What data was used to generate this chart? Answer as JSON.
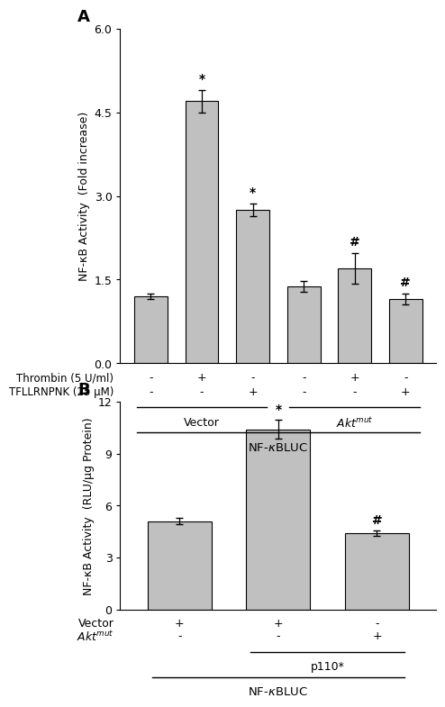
{
  "panel_A": {
    "bar_values": [
      1.2,
      4.7,
      2.75,
      1.38,
      1.7,
      1.15
    ],
    "bar_errors": [
      0.05,
      0.2,
      0.12,
      0.1,
      0.28,
      0.1
    ],
    "bar_color": "#c0c0c0",
    "ylim": [
      0.0,
      6.0
    ],
    "yticks": [
      0.0,
      1.5,
      3.0,
      4.5,
      6.0
    ],
    "ytick_labels": [
      "0.0",
      "1.5",
      "3.0",
      "4.5",
      "6.0"
    ],
    "ylabel": "NF-κB Activity  (Fold increase)",
    "panel_label": "A",
    "significance": [
      "",
      "*",
      "*",
      "",
      "#",
      "#"
    ],
    "thrombin_row": [
      "-",
      "+",
      "-",
      "-",
      "+",
      "-"
    ],
    "tfll_row": [
      "-",
      "-",
      "+",
      "-",
      "-",
      "+"
    ],
    "thrombin_label": "Thrombin (5 U/ml)",
    "tfll_label": "TFLLRNPNK (25 μM)"
  },
  "panel_B": {
    "bar_values": [
      5.1,
      10.4,
      4.4
    ],
    "bar_errors": [
      0.2,
      0.55,
      0.15
    ],
    "bar_color": "#c0c0c0",
    "ylim": [
      0.0,
      12.0
    ],
    "yticks": [
      0,
      3,
      6,
      9,
      12
    ],
    "ytick_labels": [
      "0",
      "3",
      "6",
      "9",
      "12"
    ],
    "ylabel": "NF-κB Activity  (RLU/μg Protein)",
    "panel_label": "B",
    "significance": [
      "",
      "*",
      "#"
    ],
    "vector_row": [
      "+",
      "+",
      "-"
    ],
    "akt_row": [
      "-",
      "-",
      "+"
    ],
    "vector_label": "Vector",
    "akt_label": "Akt$^{mut}$"
  },
  "bar_width": 0.65,
  "figure_bg": "#ffffff",
  "text_color": "#000000",
  "font_size": 9,
  "panel_font_size": 13
}
